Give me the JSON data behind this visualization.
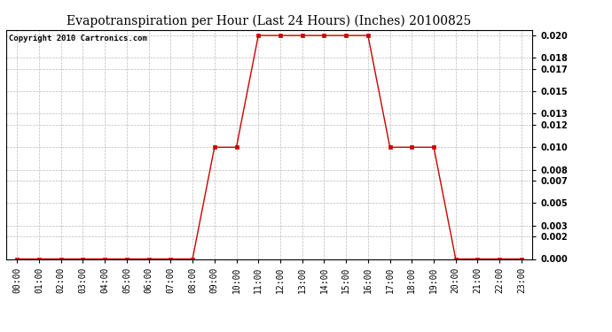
{
  "title": "Evapotranspiration per Hour (Last 24 Hours) (Inches) 20100825",
  "copyright": "Copyright 2010 Cartronics.com",
  "hours": [
    "00:00",
    "01:00",
    "02:00",
    "03:00",
    "04:00",
    "05:00",
    "06:00",
    "07:00",
    "08:00",
    "09:00",
    "10:00",
    "11:00",
    "12:00",
    "13:00",
    "14:00",
    "15:00",
    "16:00",
    "17:00",
    "18:00",
    "19:00",
    "20:00",
    "21:00",
    "22:00",
    "23:00"
  ],
  "values": [
    0.0,
    0.0,
    0.0,
    0.0,
    0.0,
    0.0,
    0.0,
    0.0,
    0.0,
    0.01,
    0.01,
    0.02,
    0.02,
    0.02,
    0.02,
    0.02,
    0.02,
    0.01,
    0.01,
    0.01,
    0.0,
    0.0,
    0.0,
    0.0
  ],
  "yticks": [
    0.0,
    0.002,
    0.003,
    0.005,
    0.007,
    0.008,
    0.01,
    0.012,
    0.013,
    0.015,
    0.017,
    0.018,
    0.02
  ],
  "ylim": [
    0.0,
    0.0205
  ],
  "line_color": "#cc0000",
  "marker": "s",
  "marker_size": 2.5,
  "bg_color": "#ffffff",
  "grid_color": "#bbbbbb",
  "title_fontsize": 10,
  "tick_fontsize": 7,
  "copyright_fontsize": 6.5
}
